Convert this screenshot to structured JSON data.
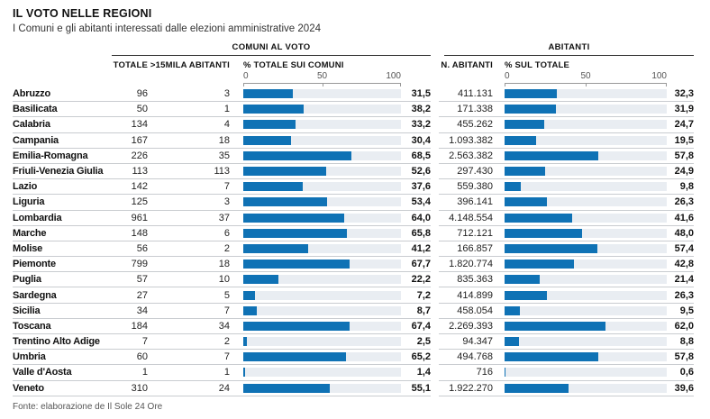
{
  "header": {
    "title": "IL VOTO NELLE REGIONI",
    "subtitle": "I Comuni e gli abitanti interessati dalle elezioni amministrative 2024"
  },
  "groups": {
    "comuni": "COMUNI AL VOTO",
    "abitanti": "ABITANTI"
  },
  "columns": {
    "totale": "TOTALE",
    "over15k": ">15MILA ABITANTI",
    "pct_comuni": "% TOTALE SUI COMUNI",
    "n_abitanti": "N. ABITANTI",
    "pct_totale": "% SUL TOTALE"
  },
  "axis": {
    "ticks": [
      "0",
      "50",
      "100"
    ]
  },
  "rows": [
    {
      "region": "Abruzzo",
      "totale": "96",
      "over15k": "3",
      "pct_comuni": "31,5",
      "pct_comuni_val": 31.5,
      "abitanti": "411.131",
      "pct_totale": "32,3",
      "pct_totale_val": 32.3
    },
    {
      "region": "Basilicata",
      "totale": "50",
      "over15k": "1",
      "pct_comuni": "38,2",
      "pct_comuni_val": 38.2,
      "abitanti": "171.338",
      "pct_totale": "31,9",
      "pct_totale_val": 31.9
    },
    {
      "region": "Calabria",
      "totale": "134",
      "over15k": "4",
      "pct_comuni": "33,2",
      "pct_comuni_val": 33.2,
      "abitanti": "455.262",
      "pct_totale": "24,7",
      "pct_totale_val": 24.7
    },
    {
      "region": "Campania",
      "totale": "167",
      "over15k": "18",
      "pct_comuni": "30,4",
      "pct_comuni_val": 30.4,
      "abitanti": "1.093.382",
      "pct_totale": "19,5",
      "pct_totale_val": 19.5
    },
    {
      "region": "Emilia-Romagna",
      "totale": "226",
      "over15k": "35",
      "pct_comuni": "68,5",
      "pct_comuni_val": 68.5,
      "abitanti": "2.563.382",
      "pct_totale": "57,8",
      "pct_totale_val": 57.8
    },
    {
      "region": "Friuli-Venezia Giulia",
      "totale": "113",
      "over15k": "113",
      "pct_comuni": "52,6",
      "pct_comuni_val": 52.6,
      "abitanti": "297.430",
      "pct_totale": "24,9",
      "pct_totale_val": 24.9
    },
    {
      "region": "Lazio",
      "totale": "142",
      "over15k": "7",
      "pct_comuni": "37,6",
      "pct_comuni_val": 37.6,
      "abitanti": "559.380",
      "pct_totale": "9,8",
      "pct_totale_val": 9.8
    },
    {
      "region": "Liguria",
      "totale": "125",
      "over15k": "3",
      "pct_comuni": "53,4",
      "pct_comuni_val": 53.4,
      "abitanti": "396.141",
      "pct_totale": "26,3",
      "pct_totale_val": 26.3
    },
    {
      "region": "Lombardia",
      "totale": "961",
      "over15k": "37",
      "pct_comuni": "64,0",
      "pct_comuni_val": 64.0,
      "abitanti": "4.148.554",
      "pct_totale": "41,6",
      "pct_totale_val": 41.6
    },
    {
      "region": "Marche",
      "totale": "148",
      "over15k": "6",
      "pct_comuni": "65,8",
      "pct_comuni_val": 65.8,
      "abitanti": "712.121",
      "pct_totale": "48,0",
      "pct_totale_val": 48.0
    },
    {
      "region": "Molise",
      "totale": "56",
      "over15k": "2",
      "pct_comuni": "41,2",
      "pct_comuni_val": 41.2,
      "abitanti": "166.857",
      "pct_totale": "57,4",
      "pct_totale_val": 57.4
    },
    {
      "region": "Piemonte",
      "totale": "799",
      "over15k": "18",
      "pct_comuni": "67,7",
      "pct_comuni_val": 67.7,
      "abitanti": "1.820.774",
      "pct_totale": "42,8",
      "pct_totale_val": 42.8
    },
    {
      "region": "Puglia",
      "totale": "57",
      "over15k": "10",
      "pct_comuni": "22,2",
      "pct_comuni_val": 22.2,
      "abitanti": "835.363",
      "pct_totale": "21,4",
      "pct_totale_val": 21.4
    },
    {
      "region": "Sardegna",
      "totale": "27",
      "over15k": "5",
      "pct_comuni": "7,2",
      "pct_comuni_val": 7.2,
      "abitanti": "414.899",
      "pct_totale": "26,3",
      "pct_totale_val": 26.3
    },
    {
      "region": "Sicilia",
      "totale": "34",
      "over15k": "7",
      "pct_comuni": "8,7",
      "pct_comuni_val": 8.7,
      "abitanti": "458.054",
      "pct_totale": "9,5",
      "pct_totale_val": 9.5
    },
    {
      "region": "Toscana",
      "totale": "184",
      "over15k": "34",
      "pct_comuni": "67,4",
      "pct_comuni_val": 67.4,
      "abitanti": "2.269.393",
      "pct_totale": "62,0",
      "pct_totale_val": 62.0
    },
    {
      "region": "Trentino Alto Adige",
      "totale": "7",
      "over15k": "2",
      "pct_comuni": "2,5",
      "pct_comuni_val": 2.5,
      "abitanti": "94.347",
      "pct_totale": "8,8",
      "pct_totale_val": 8.8
    },
    {
      "region": "Umbria",
      "totale": "60",
      "over15k": "7",
      "pct_comuni": "65,2",
      "pct_comuni_val": 65.2,
      "abitanti": "494.768",
      "pct_totale": "57,8",
      "pct_totale_val": 57.8
    },
    {
      "region": "Valle d'Aosta",
      "totale": "1",
      "over15k": "1",
      "pct_comuni": "1,4",
      "pct_comuni_val": 1.4,
      "abitanti": "716",
      "pct_totale": "0,6",
      "pct_totale_val": 0.6
    },
    {
      "region": "Veneto",
      "totale": "310",
      "over15k": "24",
      "pct_comuni": "55,1",
      "pct_comuni_val": 55.1,
      "abitanti": "1.922.270",
      "pct_totale": "39,6",
      "pct_totale_val": 39.6
    }
  ],
  "footer": {
    "source": "Fonte: elaborazione de Il Sole 24 Ore"
  },
  "colors": {
    "bar": "#0f72b5",
    "track": "#e9edf2",
    "row_rule": "#c9ccd0",
    "header_rule": "#2b2b2b",
    "axis": "#999999"
  },
  "chart_data": {
    "type": "bar",
    "title": "IL VOTO NELLE REGIONI",
    "subtitle": "I Comuni e gli abitanti interessati dalle elezioni amministrative 2024",
    "categories": [
      "Abruzzo",
      "Basilicata",
      "Calabria",
      "Campania",
      "Emilia-Romagna",
      "Friuli-Venezia Giulia",
      "Lazio",
      "Liguria",
      "Lombardia",
      "Marche",
      "Molise",
      "Piemonte",
      "Puglia",
      "Sardegna",
      "Sicilia",
      "Toscana",
      "Trentino Alto Adige",
      "Umbria",
      "Valle d'Aosta",
      "Veneto"
    ],
    "series": [
      {
        "name": "COMUNI AL VOTO - TOTALE",
        "values": [
          96,
          50,
          134,
          167,
          226,
          113,
          142,
          125,
          961,
          148,
          56,
          799,
          57,
          27,
          34,
          184,
          7,
          60,
          1,
          310
        ]
      },
      {
        "name": "COMUNI AL VOTO - >15MILA ABITANTI",
        "values": [
          3,
          1,
          4,
          18,
          35,
          113,
          7,
          3,
          37,
          6,
          2,
          18,
          10,
          5,
          7,
          34,
          2,
          7,
          1,
          24
        ]
      },
      {
        "name": "% TOTALE SUI COMUNI",
        "values": [
          31.5,
          38.2,
          33.2,
          30.4,
          68.5,
          52.6,
          37.6,
          53.4,
          64.0,
          65.8,
          41.2,
          67.7,
          22.2,
          7.2,
          8.7,
          67.4,
          2.5,
          65.2,
          1.4,
          55.1
        ]
      },
      {
        "name": "N. ABITANTI",
        "values": [
          411131,
          171338,
          455262,
          1093382,
          2563382,
          297430,
          559380,
          396141,
          4148554,
          712121,
          166857,
          1820774,
          835363,
          414899,
          458054,
          2269393,
          94347,
          494768,
          716,
          1922270
        ]
      },
      {
        "name": "% SUL TOTALE ABITANTI",
        "values": [
          32.3,
          31.9,
          24.7,
          19.5,
          57.8,
          24.9,
          9.8,
          26.3,
          41.6,
          48.0,
          57.4,
          42.8,
          21.4,
          26.3,
          9.5,
          62.0,
          8.8,
          57.8,
          0.6,
          39.6
        ]
      }
    ],
    "bar_axis_range": [
      0,
      100
    ],
    "bar_axis_ticks": [
      0,
      50,
      100
    ],
    "orientation": "horizontal",
    "grid": false,
    "legend_position": "none",
    "source": "Fonte: elaborazione de Il Sole 24 Ore"
  }
}
